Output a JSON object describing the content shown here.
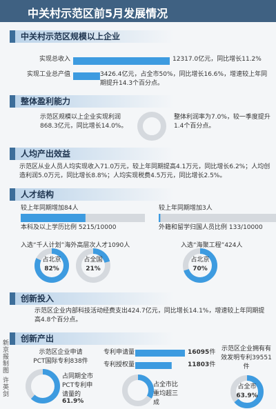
{
  "header": {
    "title": "中关村示范区前5月发展情况"
  },
  "credit": "新京报制图 许英剑",
  "sections": [
    {
      "title": "中关村示范区规模以上企业",
      "bars": [
        {
          "label": "实现总收入",
          "value": 12317.0,
          "text": "12317.0亿元，同比增长11.2%"
        },
        {
          "label": "实现工业总产值",
          "value": 3426.4,
          "text": "3426.4亿元，占全市50%，同比增长16.6%，增速较上年同期提升14.3个百分点。"
        }
      ]
    },
    {
      "title": "整体盈利能力",
      "left": "示范区规模以上企业实现利润868.3亿元，同比增长14.0%。",
      "right": "整体利润率为7.0%，较一季度提升1.4个百分点。"
    },
    {
      "title": "人均产出效益",
      "text": "示范区从业人员人均实现收入71.0万元，较上年同期提高4.1万元，同比增长6.2%；人均创造利润5.0万元，同比增长8.8%；人均实现税费4.5万元，同比增长2.5%。"
    },
    {
      "title": "人才结构",
      "ratios": [
        {
          "note": "较上年同期增加84人",
          "label": "本科及以上学历比例 5215/10000",
          "value": 5215,
          "total": 10000
        },
        {
          "note": "较上年同期增加3人",
          "label": "外籍和留学归国人员比例 133/10000",
          "value": 133,
          "total": 10000
        }
      ],
      "talent": [
        {
          "text": "入选“千人计划”海外高层次人才1090人",
          "shares": [
            {
              "caption": "占北京",
              "value": 82,
              "value_label": "82%"
            },
            {
              "caption": "占全国",
              "value": 21,
              "value_label": "21%"
            }
          ]
        },
        {
          "text": "入选“海聚工程”424人",
          "shares": [
            {
              "caption": "占北京",
              "value": 70,
              "value_label": "70%"
            }
          ]
        }
      ]
    },
    {
      "title": "创新投入",
      "text": "示范区企业内部科技活动经费支出424.7亿元，同比增长14.1%，增速较上年同期提高4.8个百分点。"
    },
    {
      "title": "创新产出",
      "pct": {
        "text": "示范区企业申请PCT国际专利838件",
        "note": "占同期全市PCT专利申请量的",
        "value": 61.9,
        "value_label": "61.9%"
      },
      "bars": [
        {
          "label": "专利申请量",
          "value": 16095,
          "unit": "件"
        },
        {
          "label": "专利授权量",
          "value": 11803,
          "unit": "件"
        }
      ],
      "ring_note": "占全市比重均超三成",
      "own": {
        "text": "示范区企业拥有有效发明专利39551件",
        "caption": "占全市",
        "value": 63.9,
        "value_label": "63.9%"
      }
    }
  ]
}
